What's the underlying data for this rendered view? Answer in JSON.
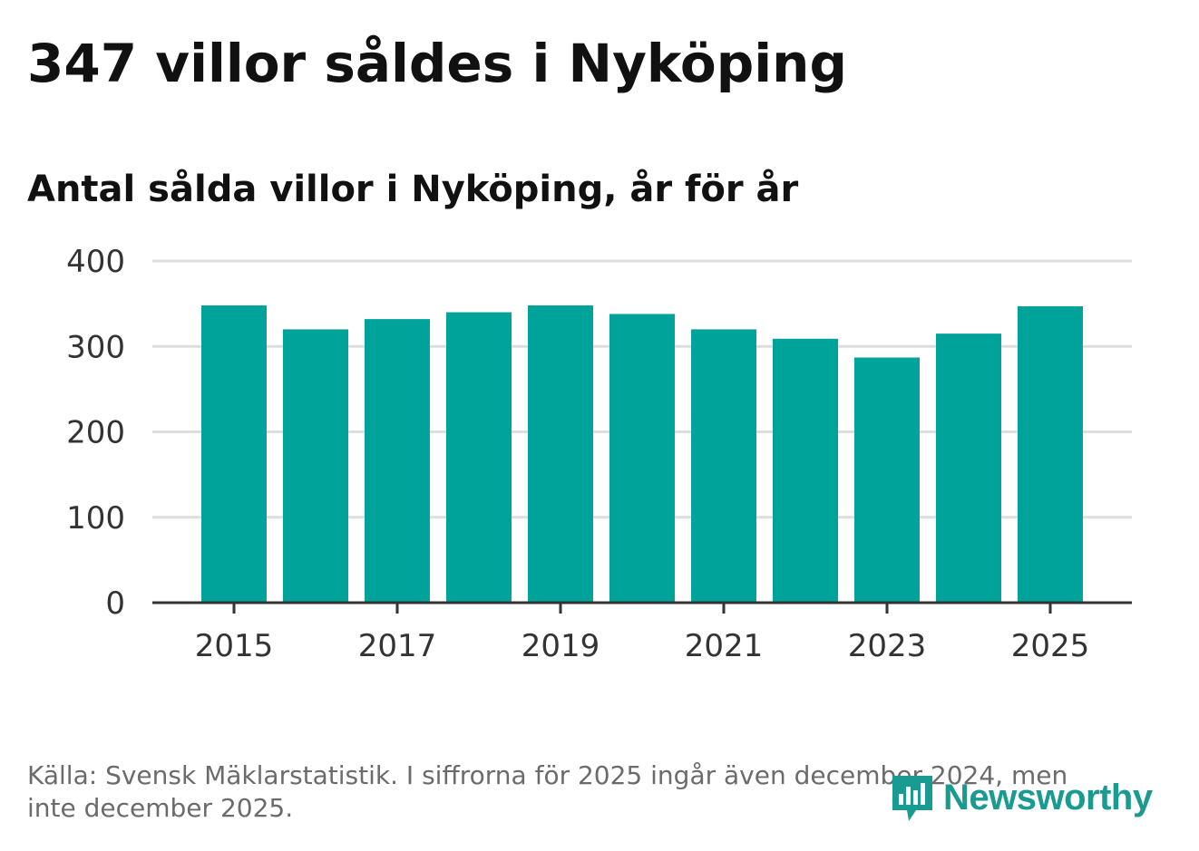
{
  "title": "347 villor såldes i Nyköping",
  "subtitle": "Antal sålda villor i Nyköping, år för år",
  "source": "Källa: Svensk Mäklarstatistik. I siffrorna för 2025 ingår även december 2024, men inte december 2025.",
  "logo": {
    "text": "Newsworthy",
    "icon": "bar-chart-speech-bubble-icon"
  },
  "colors": {
    "bar": "#00a39a",
    "grid": "#dddddd",
    "axis": "#333333",
    "logo": "#1a9b91"
  },
  "chart_data": {
    "type": "bar",
    "title": "Antal sålda villor i Nyköping, år för år",
    "xlabel": "",
    "ylabel": "",
    "categories": [
      "2015",
      "2016",
      "2017",
      "2018",
      "2019",
      "2020",
      "2021",
      "2022",
      "2023",
      "2024",
      "2025"
    ],
    "values": [
      348,
      320,
      332,
      340,
      348,
      338,
      320,
      309,
      287,
      315,
      347
    ],
    "ylim": [
      0,
      400
    ],
    "yticks": [
      "0",
      "100",
      "200",
      "300",
      "400"
    ],
    "xtick_labels": [
      "2015",
      "2017",
      "2019",
      "2021",
      "2023",
      "2025"
    ],
    "grid": true
  }
}
